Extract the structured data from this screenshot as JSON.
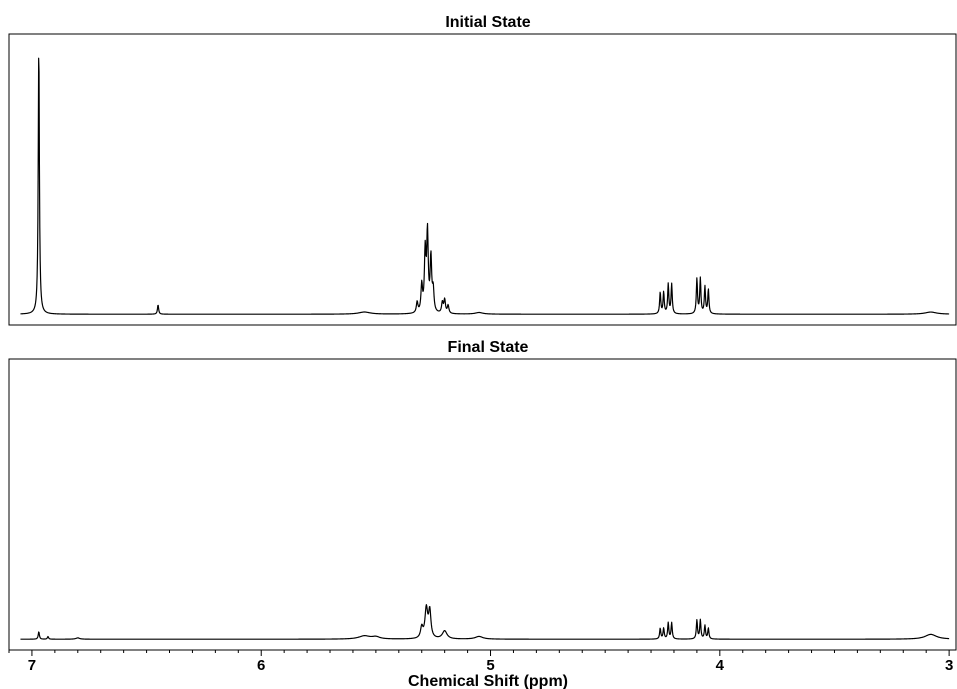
{
  "chart_data": {
    "type": "line",
    "x_axis": {
      "label": "Chemical Shift (ppm)",
      "range": [
        7.1,
        2.97
      ],
      "reversed": true,
      "major_ticks": [
        7,
        6,
        5,
        4,
        3
      ],
      "major_tick_labels": [
        "7",
        "6",
        "5",
        "4",
        "3"
      ],
      "minor_tick_step": 0.1
    },
    "y_axis": {
      "label": "",
      "ticks_shown": false
    },
    "grid": false,
    "line_color": "#000000",
    "panels": [
      {
        "title": "Initial State",
        "baseline": 0.0,
        "ylim": [
          -0.04,
          1.04
        ],
        "peaks": [
          {
            "center": 6.97,
            "height": 1.0,
            "width": 0.003
          },
          {
            "center": 6.45,
            "height": 0.035,
            "width": 0.003
          },
          {
            "center": 5.55,
            "height": 0.008,
            "width": 0.03
          },
          {
            "center": 5.32,
            "height": 0.04,
            "width": 0.004
          },
          {
            "center": 5.3,
            "height": 0.1,
            "width": 0.004
          },
          {
            "center": 5.285,
            "height": 0.22,
            "width": 0.004
          },
          {
            "center": 5.275,
            "height": 0.29,
            "width": 0.004
          },
          {
            "center": 5.26,
            "height": 0.2,
            "width": 0.004
          },
          {
            "center": 5.25,
            "height": 0.08,
            "width": 0.004
          },
          {
            "center": 5.21,
            "height": 0.04,
            "width": 0.004
          },
          {
            "center": 5.2,
            "height": 0.05,
            "width": 0.004
          },
          {
            "center": 5.185,
            "height": 0.03,
            "width": 0.004
          },
          {
            "center": 5.05,
            "height": 0.006,
            "width": 0.02
          },
          {
            "center": 4.26,
            "height": 0.08,
            "width": 0.003
          },
          {
            "center": 4.245,
            "height": 0.08,
            "width": 0.003
          },
          {
            "center": 4.225,
            "height": 0.11,
            "width": 0.003
          },
          {
            "center": 4.21,
            "height": 0.11,
            "width": 0.003
          },
          {
            "center": 4.1,
            "height": 0.13,
            "width": 0.003
          },
          {
            "center": 4.085,
            "height": 0.13,
            "width": 0.003
          },
          {
            "center": 4.065,
            "height": 0.1,
            "width": 0.003
          },
          {
            "center": 4.05,
            "height": 0.09,
            "width": 0.003
          },
          {
            "center": 3.08,
            "height": 0.008,
            "width": 0.03
          }
        ]
      },
      {
        "title": "Final State",
        "baseline": 0.0,
        "ylim": [
          -0.04,
          1.04
        ],
        "peaks": [
          {
            "center": 6.97,
            "height": 0.028,
            "width": 0.003
          },
          {
            "center": 6.93,
            "height": 0.01,
            "width": 0.003
          },
          {
            "center": 6.8,
            "height": 0.005,
            "width": 0.01
          },
          {
            "center": 5.55,
            "height": 0.012,
            "width": 0.03
          },
          {
            "center": 5.5,
            "height": 0.008,
            "width": 0.02
          },
          {
            "center": 5.3,
            "height": 0.04,
            "width": 0.006
          },
          {
            "center": 5.28,
            "height": 0.11,
            "width": 0.007
          },
          {
            "center": 5.265,
            "height": 0.1,
            "width": 0.006
          },
          {
            "center": 5.2,
            "height": 0.03,
            "width": 0.012
          },
          {
            "center": 5.05,
            "height": 0.01,
            "width": 0.02
          },
          {
            "center": 4.26,
            "height": 0.04,
            "width": 0.003
          },
          {
            "center": 4.245,
            "height": 0.04,
            "width": 0.003
          },
          {
            "center": 4.225,
            "height": 0.06,
            "width": 0.003
          },
          {
            "center": 4.21,
            "height": 0.06,
            "width": 0.003
          },
          {
            "center": 4.1,
            "height": 0.07,
            "width": 0.003
          },
          {
            "center": 4.085,
            "height": 0.07,
            "width": 0.003
          },
          {
            "center": 4.065,
            "height": 0.05,
            "width": 0.003
          },
          {
            "center": 4.05,
            "height": 0.04,
            "width": 0.003
          },
          {
            "center": 3.08,
            "height": 0.018,
            "width": 0.03
          }
        ]
      }
    ]
  }
}
